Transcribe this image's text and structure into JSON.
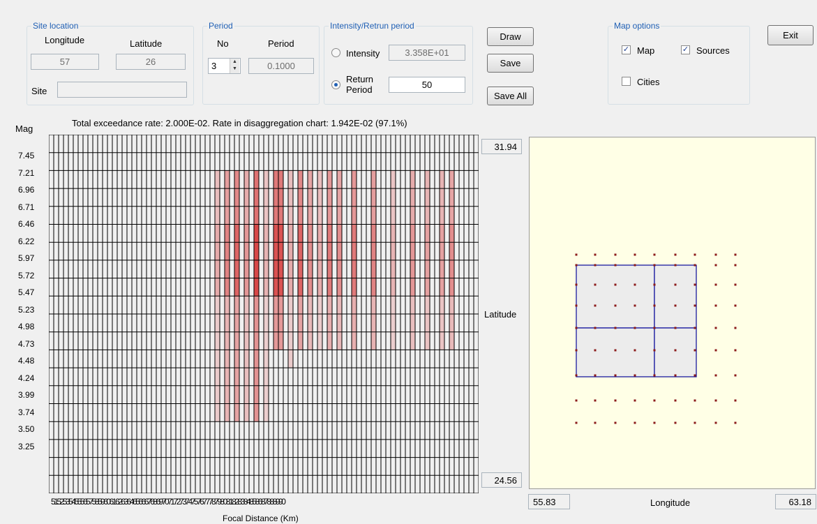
{
  "site_location": {
    "legend": "Site location",
    "longitude_label": "Longitude",
    "latitude_label": "Latitude",
    "longitude_value": "57",
    "latitude_value": "26",
    "site_label": "Site",
    "site_value": ""
  },
  "period": {
    "legend": "Period",
    "no_label": "No",
    "period_label": "Period",
    "no_value": "3",
    "period_value": "0.1000"
  },
  "intensity": {
    "legend": "Intensity/Retrun period",
    "intensity_label": "Intensity",
    "intensity_value": "3.358E+01",
    "return_label_1": "Return",
    "return_label_2": "Period",
    "return_value": "50",
    "selected": "return"
  },
  "buttons": {
    "draw": "Draw",
    "save": "Save",
    "save_all": "Save All",
    "exit": "Exit"
  },
  "map_options": {
    "legend": "Map options",
    "map_label": "Map",
    "map_checked": true,
    "sources_label": "Sources",
    "sources_checked": true,
    "cities_label": "Cities",
    "cities_checked": false
  },
  "summary": "Total exceedance rate: 2.000E-02. Rate in disaggregation chart: 1.942E-02 (97.1%)",
  "chart_data": {
    "type": "heatmap",
    "ylabel": "Mag",
    "xlabel": "Focal Distance (Km)",
    "y_ticks": [
      "7.45",
      "7.21",
      "6.96",
      "6.71",
      "6.46",
      "6.22",
      "5.97",
      "5.72",
      "5.47",
      "5.23",
      "4.98",
      "4.73",
      "4.48",
      "4.24",
      "3.99",
      "3.74",
      "3.50",
      "3.25"
    ],
    "x_ticks": [
      "51",
      "52",
      "53",
      "54",
      "55",
      "56",
      "57",
      "58",
      "59",
      "60",
      "61",
      "62",
      "63",
      "64",
      "65",
      "66",
      "67",
      "68",
      "69",
      "70",
      "71",
      "72",
      "73",
      "74",
      "75",
      "76",
      "77",
      "78",
      "79",
      "80",
      "81",
      "82",
      "83",
      "84",
      "85",
      "86",
      "87",
      "88",
      "89",
      "90"
    ],
    "color_high": "#d42a2a",
    "color_low": "#fbe3e3"
  },
  "map": {
    "lat_max": "31.94",
    "lat_min": "24.56",
    "lon_min": "55.83",
    "lon_max": "63.18",
    "lat_label": "Latitude",
    "lon_label": "Longitude",
    "background": "#ffffe6",
    "source_color": "#1a1aa0",
    "point_color": "#8b1a1a"
  }
}
